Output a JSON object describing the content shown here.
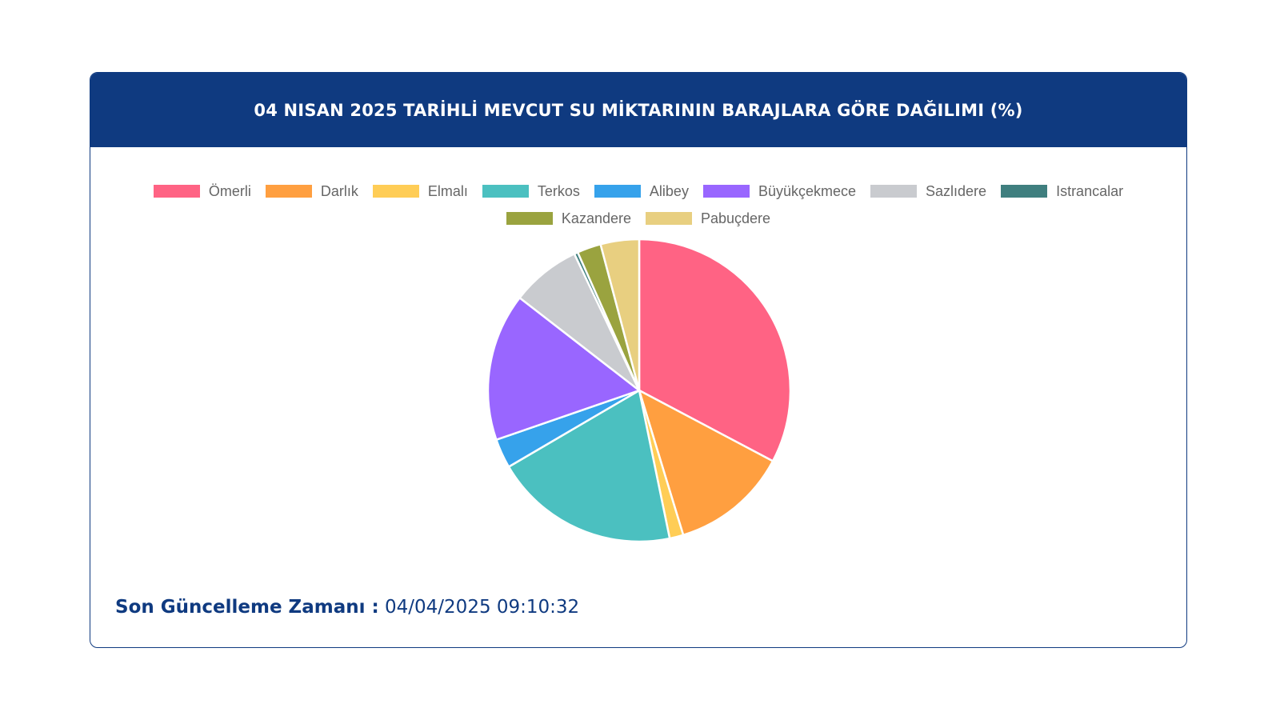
{
  "card": {
    "title": "04 NISAN 2025 TARİHLİ MEVCUT SU MİKTARININ BARAJLARA GÖRE DAĞILIMI (%)",
    "header_color": "#0f3a80"
  },
  "footer": {
    "label": "Son Güncelleme Zamanı :",
    "value": "04/04/2025 09:10:32"
  },
  "chart_data": {
    "type": "pie",
    "title": "04 NISAN 2025 TARİHLİ MEVCUT SU MİKTARININ BARAJLARA GÖRE DAĞILIMI (%)",
    "legend_position": "top",
    "categories": [
      "Ömerli",
      "Darlık",
      "Elmalı",
      "Terkos",
      "Alibey",
      "Büyükçekmece",
      "Sazlıdere",
      "Istrancalar",
      "Kazandere",
      "Pabuçdere"
    ],
    "values": [
      33.4,
      12.8,
      1.5,
      20.2,
      3.2,
      16.1,
      7.6,
      0.4,
      2.6,
      4.2
    ],
    "colors": [
      "#ff6384",
      "#ff9f40",
      "#ffcd56",
      "#4bc0c0",
      "#36a2eb",
      "#9966ff",
      "#c9cbcf",
      "#3f7f7f",
      "#9aa33f",
      "#e8cf80"
    ]
  }
}
